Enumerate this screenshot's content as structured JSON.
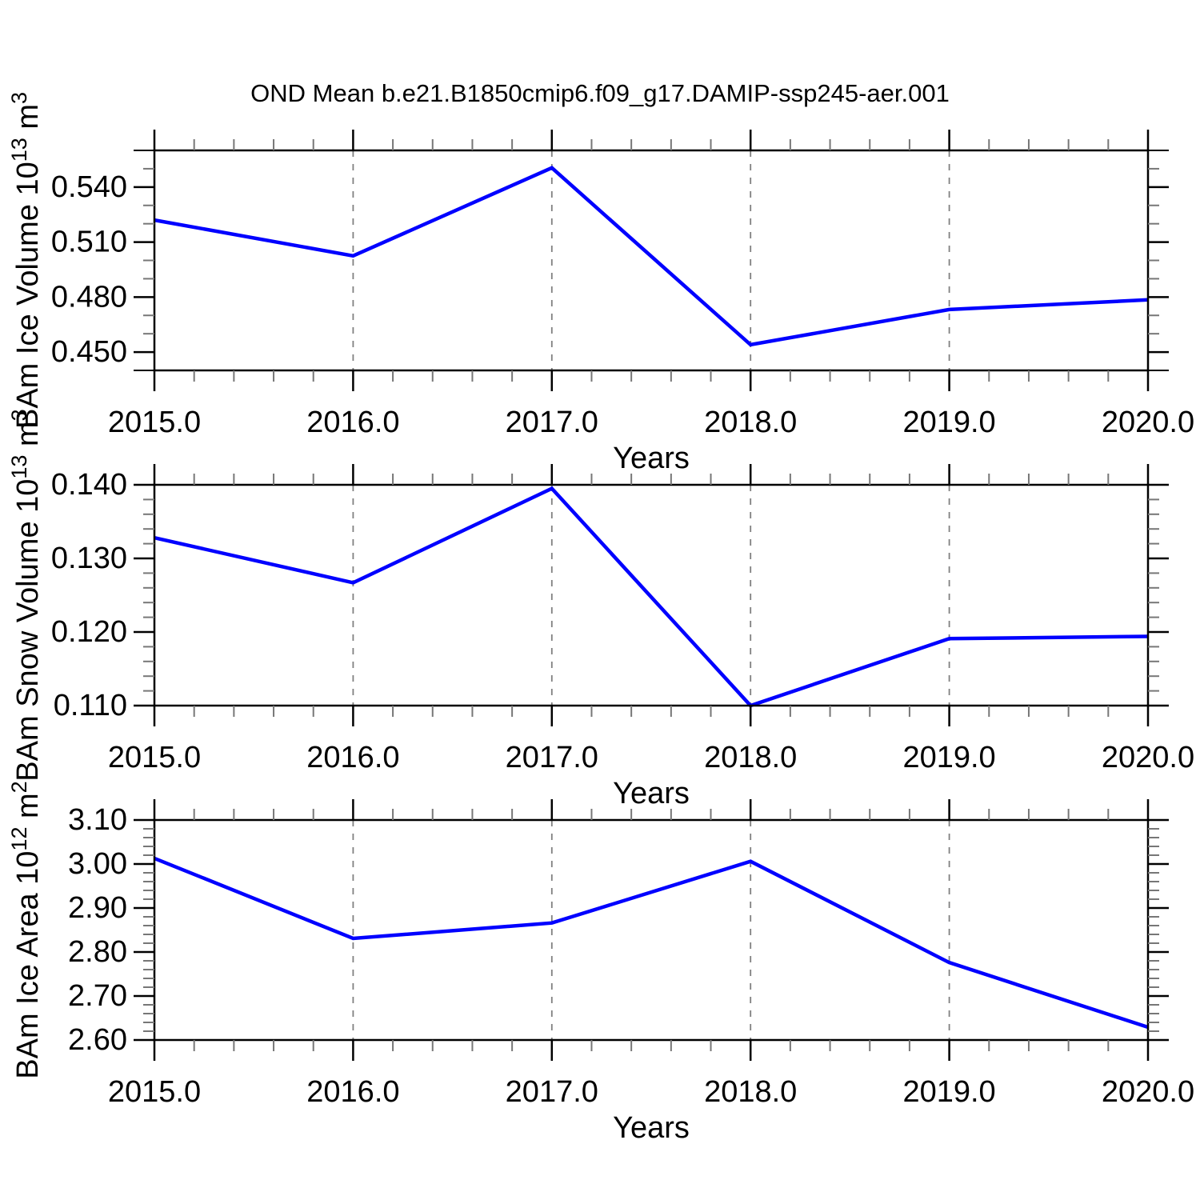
{
  "chart_title": "OND Mean b.e21.B1850cmip6.f09_g17.DAMIP-ssp245-aer.001",
  "colors": {
    "line": "#0000ff",
    "frame": "#000000",
    "grid": "#808080",
    "minor_tick": "#777777",
    "text": "#000000",
    "background": "#ffffff"
  },
  "chart_data": [
    {
      "name": "ice-volume",
      "type": "line",
      "ylabel": "BAm Ice Volume 10¹³ m³",
      "ylabel_parts": [
        {
          "t": "BAm Ice Volume 10"
        },
        {
          "t": "13",
          "sup": true
        },
        {
          "t": " m"
        },
        {
          "t": "3",
          "sup": true
        }
      ],
      "xlabel": "Years",
      "x": [
        2015.0,
        2016.0,
        2017.0,
        2018.0,
        2019.0,
        2020.0
      ],
      "y": [
        0.522,
        0.5025,
        0.5505,
        0.454,
        0.4732,
        0.4785
      ],
      "xlim": [
        2015.0,
        2020.0
      ],
      "ylim": [
        0.44,
        0.56
      ],
      "xticks": [
        2015,
        2016,
        2017,
        2018,
        2019,
        2020
      ],
      "xtick_labels": [
        "2015.0",
        "2016.0",
        "2017.0",
        "2018.0",
        "2019.0",
        "2020.0"
      ],
      "xminor_step": 0.2,
      "yticks": [
        0.45,
        0.48,
        0.51,
        0.54
      ],
      "ytick_labels": [
        "0.450",
        "0.480",
        "0.510",
        "0.540"
      ],
      "yminor_step": 0.01,
      "x_gridlines": [
        2016,
        2017,
        2018,
        2019
      ],
      "grid_style": "vertical-dashed",
      "legend": "none"
    },
    {
      "name": "snow-volume",
      "type": "line",
      "ylabel": "BAm Snow Volume 10¹³ m³",
      "ylabel_parts": [
        {
          "t": "BAm Snow Volume 10"
        },
        {
          "t": "13",
          "sup": true
        },
        {
          "t": " m"
        },
        {
          "t": "3",
          "sup": true
        }
      ],
      "xlabel": "Years",
      "x": [
        2015.0,
        2016.0,
        2017.0,
        2018.0,
        2019.0,
        2020.0
      ],
      "y": [
        0.1328,
        0.1267,
        0.1395,
        0.11,
        0.1191,
        0.1194
      ],
      "xlim": [
        2015.0,
        2020.0
      ],
      "ylim": [
        0.11,
        0.14
      ],
      "xticks": [
        2015,
        2016,
        2017,
        2018,
        2019,
        2020
      ],
      "xtick_labels": [
        "2015.0",
        "2016.0",
        "2017.0",
        "2018.0",
        "2019.0",
        "2020.0"
      ],
      "xminor_step": 0.2,
      "yticks": [
        0.11,
        0.12,
        0.13,
        0.14
      ],
      "ytick_labels": [
        "0.110",
        "0.120",
        "0.130",
        "0.140"
      ],
      "yminor_step": 0.002,
      "x_gridlines": [
        2016,
        2017,
        2018,
        2019
      ],
      "grid_style": "vertical-dashed",
      "legend": "none"
    },
    {
      "name": "ice-area",
      "type": "line",
      "ylabel": "BAm Ice Area 10¹² m²",
      "ylabel_parts": [
        {
          "t": "BAm Ice Area 10"
        },
        {
          "t": "12",
          "sup": true
        },
        {
          "t": " m"
        },
        {
          "t": "2",
          "sup": true
        }
      ],
      "xlabel": "Years",
      "x": [
        2015.0,
        2016.0,
        2017.0,
        2018.0,
        2019.0,
        2020.0
      ],
      "y": [
        3.013,
        2.831,
        2.866,
        3.006,
        2.776,
        2.629
      ],
      "xlim": [
        2015.0,
        2020.0
      ],
      "ylim": [
        2.6,
        3.1
      ],
      "xticks": [
        2015,
        2016,
        2017,
        2018,
        2019,
        2020
      ],
      "xtick_labels": [
        "2015.0",
        "2016.0",
        "2017.0",
        "2018.0",
        "2019.0",
        "2020.0"
      ],
      "xminor_step": 0.2,
      "yticks": [
        2.6,
        2.7,
        2.8,
        2.9,
        3.0,
        3.1
      ],
      "ytick_labels": [
        "2.60",
        "2.70",
        "2.80",
        "2.90",
        "3.00",
        "3.10"
      ],
      "yminor_step": 0.02,
      "x_gridlines": [
        2016,
        2017,
        2018,
        2019
      ],
      "grid_style": "vertical-dashed",
      "legend": "none"
    }
  ]
}
